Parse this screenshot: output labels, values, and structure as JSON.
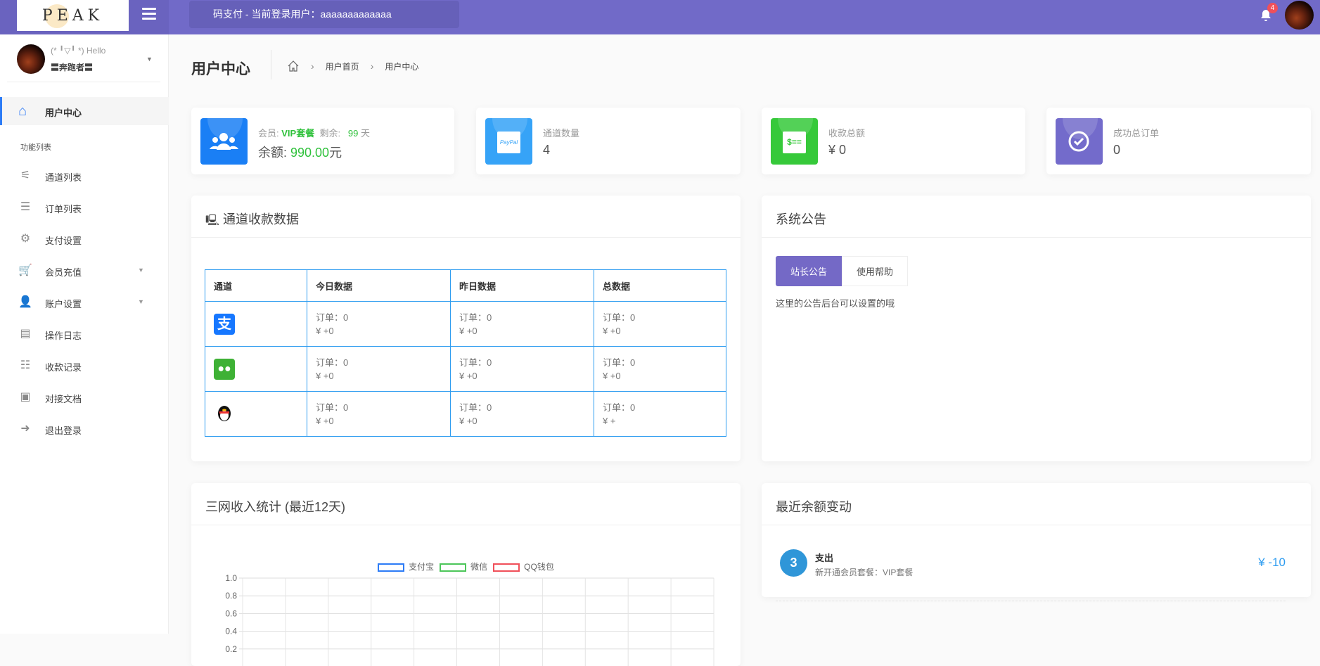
{
  "header": {
    "logo_text": "PEAK",
    "title": "码支付 - 当前登录用户：aaaaaaaaaaaaa",
    "notification_count": "4",
    "accent": "#716ac8"
  },
  "sidebar": {
    "user": {
      "greeting": "(* ╹▽╹ *) Hello",
      "name": "〓奔跑者〓"
    },
    "active": {
      "label": "用户中心",
      "icon": "home-icon"
    },
    "section": "功能列表",
    "items": [
      {
        "label": "通道列表",
        "icon": "sliders-icon"
      },
      {
        "label": "订单列表",
        "icon": "bars-icon"
      },
      {
        "label": "支付设置",
        "icon": "gears-icon"
      },
      {
        "label": "会员充值",
        "icon": "cart-icon",
        "caret": true
      },
      {
        "label": "账户设置",
        "icon": "user-gear-icon",
        "caret": true
      },
      {
        "label": "操作日志",
        "icon": "list-alt-icon"
      },
      {
        "label": "收款记录",
        "icon": "list-icon"
      },
      {
        "label": "对接文档",
        "icon": "document-icon"
      },
      {
        "label": "退出登录",
        "icon": "sign-out-icon"
      }
    ]
  },
  "page": {
    "title": "用户中心",
    "breadcrumb": [
      "用户首页",
      "用户中心"
    ]
  },
  "stats": {
    "member": {
      "member_label": "会员: ",
      "plan": "VIP套餐",
      "remain_label": "剩余: ",
      "days": "99",
      "days_unit": " 天",
      "balance_label": "余额: ",
      "balance": "990.00",
      "balance_unit": "元"
    },
    "channels": {
      "label": "通道数量",
      "value": "4"
    },
    "total_amount": {
      "label": "收款总额",
      "value": "¥ 0"
    },
    "orders": {
      "label": "成功总订单",
      "value": "0"
    }
  },
  "channel_panel": {
    "title": "通道收款数据",
    "headers": [
      "通道",
      "今日数据",
      "昨日数据",
      "总数据"
    ],
    "rows": [
      {
        "channel": "alipay",
        "cells": [
          [
            "订单：0",
            "¥ +0"
          ],
          [
            "订单：0",
            "¥ +0"
          ],
          [
            "订单：0",
            "¥ +0"
          ]
        ]
      },
      {
        "channel": "wechat",
        "cells": [
          [
            "订单：0",
            "¥ +0"
          ],
          [
            "订单：0",
            "¥ +0"
          ],
          [
            "订单：0",
            "¥ +0"
          ]
        ]
      },
      {
        "channel": "qq",
        "cells": [
          [
            "订单：0",
            "¥ +0"
          ],
          [
            "订单：0",
            "¥ +0"
          ],
          [
            "订单：0",
            "¥ +"
          ]
        ]
      }
    ]
  },
  "notice_panel": {
    "title": "系统公告",
    "tabs": [
      "站长公告",
      "使用帮助"
    ],
    "content": "这里的公告后台可以设置的哦"
  },
  "chart_panel": {
    "title": "三网收入统计 (最近12天)"
  },
  "chart_data": {
    "type": "line",
    "series": [
      {
        "name": "支付宝",
        "color": "#2d7cf6",
        "values": []
      },
      {
        "name": "微信",
        "color": "#4cc65a",
        "values": []
      },
      {
        "name": "QQ钱包",
        "color": "#f0505a",
        "values": []
      }
    ],
    "y_ticks": [
      "1.0",
      "0.8",
      "0.6",
      "0.4",
      "0.2"
    ],
    "ylim": [
      0,
      1
    ],
    "x_count": 12,
    "grid": true,
    "legend": "top"
  },
  "balance_panel": {
    "title": "最近余额变动",
    "items": [
      {
        "title": "支出",
        "desc": "新开通会员套餐：VIP套餐",
        "amount": "¥ -10"
      }
    ]
  }
}
